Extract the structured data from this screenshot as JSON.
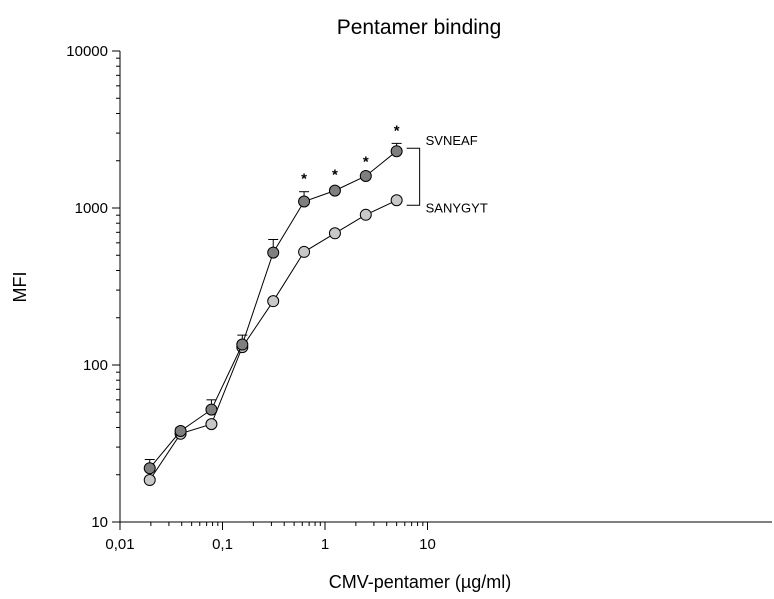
{
  "chart_data": {
    "type": "line",
    "title": "Pentamer binding",
    "xlabel": "CMV-pentamer (µg/ml)",
    "ylabel": "MFI",
    "xscale": "log",
    "yscale": "log",
    "xlim": [
      0.01,
      15
    ],
    "ylim": [
      10,
      10000
    ],
    "xticks": [
      {
        "value": 0.01,
        "label": "0,01"
      },
      {
        "value": 0.1,
        "label": "0,1"
      },
      {
        "value": 1,
        "label": "1"
      },
      {
        "value": 10,
        "label": "10"
      }
    ],
    "yticks": [
      {
        "value": 10,
        "label": "10"
      },
      {
        "value": 100,
        "label": "100"
      },
      {
        "value": 1000,
        "label": "1000"
      },
      {
        "value": 10000,
        "label": "10000"
      }
    ],
    "grid": false,
    "legend": "none",
    "series": [
      {
        "name": "SVNEAF",
        "color": "#7f7f7f",
        "x": [
          0.0195,
          0.039,
          0.078,
          0.156,
          0.3125,
          0.625,
          1.25,
          2.5,
          5
        ],
        "y": [
          22,
          38,
          52,
          135,
          520,
          1100,
          1290,
          1600,
          2300
        ],
        "error": [
          3,
          2,
          8,
          20,
          110,
          170,
          60,
          40,
          280
        ]
      },
      {
        "name": "SANYGYT",
        "color": "#c8c8c8",
        "x": [
          0.0195,
          0.039,
          0.078,
          0.156,
          0.3125,
          0.625,
          1.25,
          2.5,
          5
        ],
        "y": [
          18.5,
          36.5,
          42,
          130,
          255,
          525,
          690,
          905,
          1120
        ],
        "error": [
          0,
          0,
          0,
          0,
          0,
          0,
          0,
          0,
          0
        ]
      }
    ],
    "annotations": [
      {
        "text": "*",
        "x": 0.625
      },
      {
        "text": "*",
        "x": 1.25
      },
      {
        "text": "*",
        "x": 2.5
      },
      {
        "text": "*",
        "x": 5
      }
    ]
  }
}
